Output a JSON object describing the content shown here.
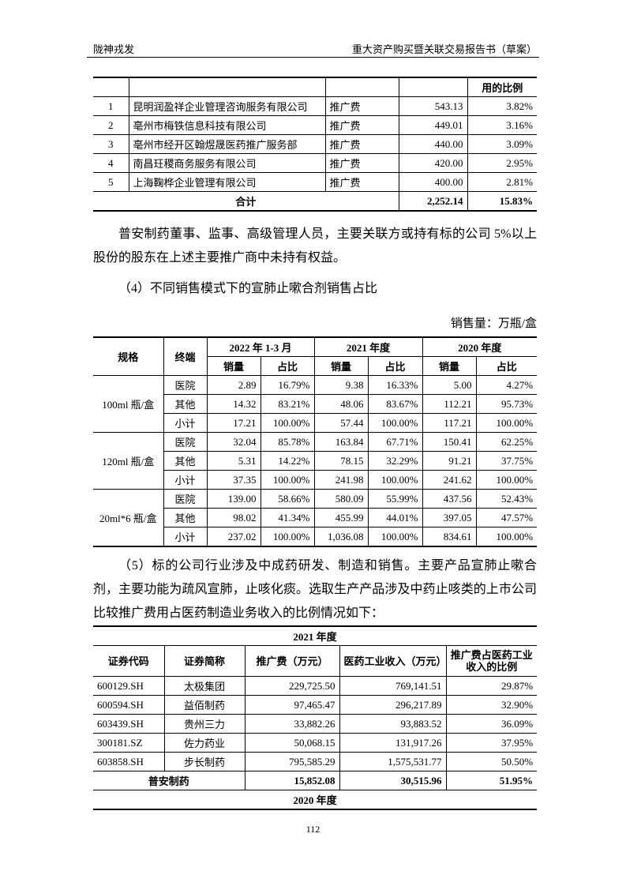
{
  "header": {
    "left": "陇神戎发",
    "right": "重大资产购买暨关联交易报告书（草案）"
  },
  "table1": {
    "header_tail": "用的比例",
    "rows": [
      [
        "1",
        "昆明润盈祥企业管理咨询服务有限公司",
        "推广费",
        "543.13",
        "3.82%"
      ],
      [
        "2",
        "亳州市梅铁信息科技有限公司",
        "推广费",
        "449.01",
        "3.16%"
      ],
      [
        "3",
        "亳州市经开区翰煜晟医药推广服务部",
        "推广费",
        "440.00",
        "3.09%"
      ],
      [
        "4",
        "南昌玨稷商务服务有限公司",
        "推广费",
        "420.00",
        "2.95%"
      ],
      [
        "5",
        "上海鞠桦企业管理有限公司",
        "推广费",
        "400.00",
        "2.81%"
      ]
    ],
    "total": [
      "合计",
      "2,252.14",
      "15.83%"
    ]
  },
  "paragraph1": "普安制药董事、监事、高级管理人员，主要关联方或持有标的公司 5%以上股份的股东在上述主要推广商中未持有权益。",
  "heading": "（4）不同销售模式下的宣肺止嗽合剂销售占比",
  "unit": "销售量：万瓶/盒",
  "table2": {
    "columns": [
      "规格",
      "终端"
    ],
    "periods": [
      "2022 年 1-3 月",
      "2021 年度",
      "2020 年度"
    ],
    "subcolumns": [
      "销量",
      "占比"
    ],
    "groups": [
      {
        "spec": "100ml 瓶/盒",
        "rows": [
          [
            "医院",
            "2.89",
            "16.79%",
            "9.38",
            "16.33%",
            "5.00",
            "4.27%"
          ],
          [
            "其他",
            "14.32",
            "83.21%",
            "48.06",
            "83.67%",
            "112.21",
            "95.73%"
          ],
          [
            "小计",
            "17.21",
            "100.00%",
            "57.44",
            "100.00%",
            "117.21",
            "100.00%"
          ]
        ]
      },
      {
        "spec": "120ml 瓶/盒",
        "rows": [
          [
            "医院",
            "32.04",
            "85.78%",
            "163.84",
            "67.71%",
            "150.41",
            "62.25%"
          ],
          [
            "其他",
            "5.31",
            "14.22%",
            "78.15",
            "32.29%",
            "91.21",
            "37.75%"
          ],
          [
            "小计",
            "37.35",
            "100.00%",
            "241.98",
            "100.00%",
            "241.62",
            "100.00%"
          ]
        ]
      },
      {
        "spec": "20ml*6 瓶/盒",
        "rows": [
          [
            "医院",
            "139.00",
            "58.66%",
            "580.09",
            "55.99%",
            "437.56",
            "52.43%"
          ],
          [
            "其他",
            "98.02",
            "41.34%",
            "455.99",
            "44.01%",
            "397.05",
            "47.57%"
          ],
          [
            "小计",
            "237.02",
            "100.00%",
            "1,036.08",
            "100.00%",
            "834.61",
            "100.00%"
          ]
        ]
      }
    ]
  },
  "paragraph2": "（5）标的公司行业涉及中成药研发、制造和销售。主要产品宣肺止嗽合剂，主要功能为疏风宣肺，止咳化痰。选取生产产品涉及中药止咳类的上市公司比较推广费用占医药制造业务收入的比例情况如下：",
  "table3": {
    "title": "2021 年度",
    "columns": [
      "证券代码",
      "证券简称",
      "推广费（万元）",
      "医药工业收入（万元）",
      "推广费占医药工业收入的比例"
    ],
    "rows": [
      [
        "600129.SH",
        "太极集团",
        "229,725.50",
        "769,141.51",
        "29.87%"
      ],
      [
        "600594.SH",
        "益佰制药",
        "97,465.47",
        "296,217.89",
        "32.90%"
      ],
      [
        "603439.SH",
        "贵州三力",
        "33,882.26",
        "93,883.52",
        "36.09%"
      ],
      [
        "300181.SZ",
        "佐力药业",
        "50,068.15",
        "131,917.26",
        "37.95%"
      ],
      [
        "603858.SH",
        "步长制药",
        "795,585.29",
        "1,575,531.77",
        "50.50%"
      ]
    ],
    "total": [
      "普安制药",
      "15,852.08",
      "30,515.96",
      "51.95%"
    ],
    "next_title": "2020 年度"
  },
  "page_number": "112"
}
